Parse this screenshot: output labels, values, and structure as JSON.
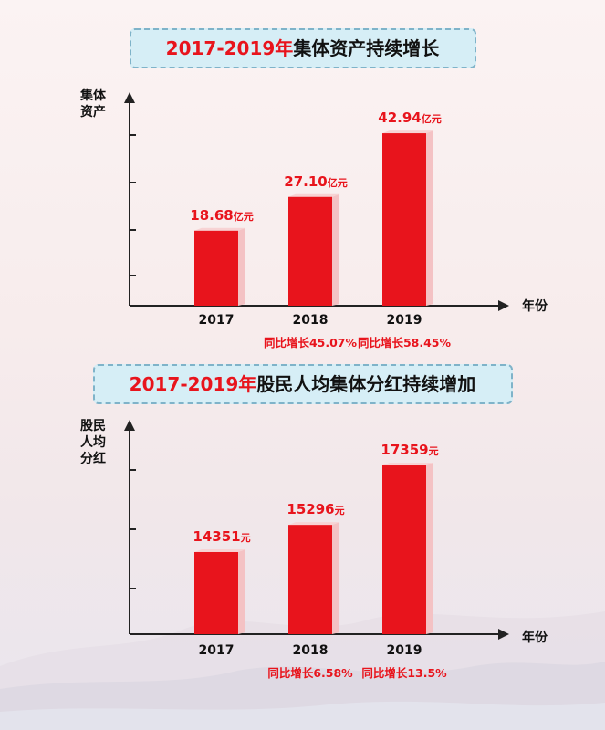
{
  "chart_data": [
    {
      "type": "bar",
      "title_year": "2017-2019年",
      "title_rest": "集体资产持续增长",
      "ylabel": "集体\n资产",
      "xlabel": "年份",
      "categories": [
        "2017",
        "2018",
        "2019"
      ],
      "values": [
        18.68,
        27.1,
        42.94
      ],
      "value_labels": [
        "18.68",
        "27.10",
        "42.94"
      ],
      "unit": "亿元",
      "growth_labels": [
        "",
        "同比增长45.07%",
        "同比增长58.45%"
      ],
      "ylim": [
        0,
        50
      ],
      "bar_color": "#e8141c"
    },
    {
      "type": "bar",
      "title_year": "2017-2019年",
      "title_rest": "股民人均集体分红持续增加",
      "ylabel": "股民\n人均\n分红",
      "xlabel": "年份",
      "categories": [
        "2017",
        "2018",
        "2019"
      ],
      "values": [
        14351,
        15296,
        17359
      ],
      "value_labels": [
        "14351",
        "15296",
        "17359"
      ],
      "unit": "元",
      "growth_labels": [
        "",
        "同比增长6.58%",
        "同比增长13.5%"
      ],
      "ylim": [
        11500,
        18500
      ],
      "bar_color": "#e8141c"
    }
  ]
}
